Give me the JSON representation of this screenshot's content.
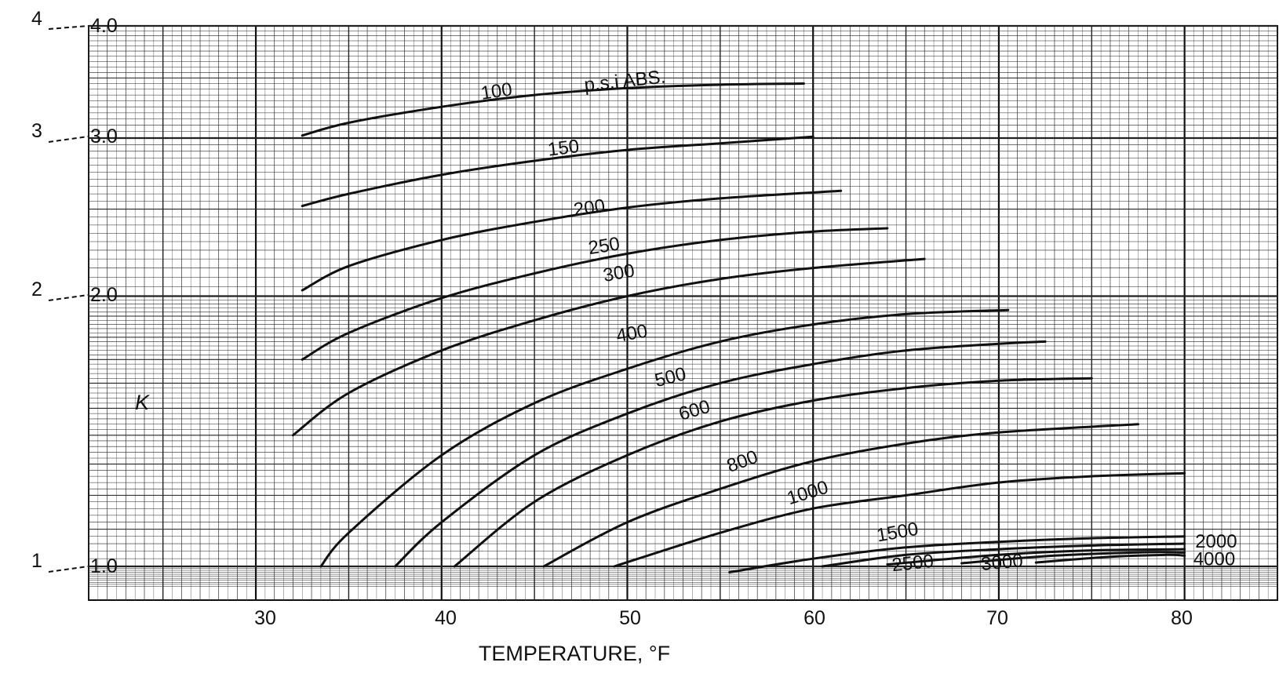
{
  "chart_data": {
    "type": "line",
    "title": "",
    "xlabel": "TEMPERATURE, °F",
    "ylabel": "K",
    "xlim": [
      21,
      85
    ],
    "ylim": [
      0.95,
      4.0
    ],
    "yscale": "log",
    "grid": true,
    "x_ticks": [
      "30",
      "40",
      "50",
      "60",
      "70",
      "80"
    ],
    "y_ticks": [
      "4.0",
      "3.0",
      "2.0",
      "1.0"
    ],
    "left_scale_ticks": [
      "4",
      "3",
      "2",
      "1"
    ],
    "curve_label_unit": "p.s.i ABS.",
    "series": [
      {
        "name": "100",
        "points": [
          [
            32.5,
            3.02
          ],
          [
            35,
            3.12
          ],
          [
            40,
            3.25
          ],
          [
            45,
            3.35
          ],
          [
            50,
            3.41
          ],
          [
            55,
            3.44
          ],
          [
            59.5,
            3.45
          ]
        ]
      },
      {
        "name": "150",
        "points": [
          [
            32.5,
            2.52
          ],
          [
            35,
            2.6
          ],
          [
            40,
            2.73
          ],
          [
            45,
            2.83
          ],
          [
            50,
            2.91
          ],
          [
            55,
            2.96
          ],
          [
            60,
            3.01
          ]
        ]
      },
      {
        "name": "200",
        "points": [
          [
            32.5,
            2.03
          ],
          [
            35,
            2.16
          ],
          [
            40,
            2.31
          ],
          [
            45,
            2.42
          ],
          [
            50,
            2.51
          ],
          [
            55,
            2.57
          ],
          [
            61.5,
            2.62
          ]
        ]
      },
      {
        "name": "250",
        "points": [
          [
            32.5,
            1.7
          ],
          [
            35,
            1.82
          ],
          [
            40,
            1.99
          ],
          [
            45,
            2.12
          ],
          [
            50,
            2.23
          ],
          [
            55,
            2.31
          ],
          [
            60,
            2.36
          ],
          [
            64,
            2.38
          ]
        ]
      },
      {
        "name": "300",
        "points": [
          [
            32,
            1.4
          ],
          [
            35,
            1.56
          ],
          [
            40,
            1.74
          ],
          [
            45,
            1.88
          ],
          [
            50,
            2.0
          ],
          [
            55,
            2.09
          ],
          [
            60,
            2.15
          ],
          [
            66,
            2.2
          ]
        ]
      },
      {
        "name": "400",
        "points": [
          [
            33.5,
            1.0
          ],
          [
            35,
            1.09
          ],
          [
            40,
            1.33
          ],
          [
            45,
            1.52
          ],
          [
            50,
            1.66
          ],
          [
            55,
            1.78
          ],
          [
            60,
            1.86
          ],
          [
            65,
            1.91
          ],
          [
            70.5,
            1.93
          ]
        ]
      },
      {
        "name": "500",
        "points": [
          [
            37.5,
            1.0
          ],
          [
            40,
            1.12
          ],
          [
            45,
            1.33
          ],
          [
            50,
            1.48
          ],
          [
            55,
            1.6
          ],
          [
            60,
            1.68
          ],
          [
            65,
            1.74
          ],
          [
            70,
            1.77
          ],
          [
            72.5,
            1.78
          ]
        ]
      },
      {
        "name": "600",
        "points": [
          [
            40.7,
            1.0
          ],
          [
            45,
            1.18
          ],
          [
            50,
            1.33
          ],
          [
            55,
            1.45
          ],
          [
            60,
            1.53
          ],
          [
            65,
            1.58
          ],
          [
            70,
            1.61
          ],
          [
            75,
            1.62
          ]
        ]
      },
      {
        "name": "800",
        "points": [
          [
            45.5,
            1.0
          ],
          [
            50,
            1.12
          ],
          [
            55,
            1.22
          ],
          [
            60,
            1.31
          ],
          [
            65,
            1.37
          ],
          [
            70,
            1.41
          ],
          [
            77.5,
            1.44
          ]
        ]
      },
      {
        "name": "1000",
        "points": [
          [
            49.3,
            1.0
          ],
          [
            55,
            1.09
          ],
          [
            60,
            1.16
          ],
          [
            65,
            1.2
          ],
          [
            70,
            1.24
          ],
          [
            75,
            1.26
          ],
          [
            80,
            1.27
          ]
        ]
      },
      {
        "name": "1500",
        "points": [
          [
            55.5,
            0.985
          ],
          [
            60,
            1.02
          ],
          [
            65,
            1.05
          ],
          [
            70,
            1.065
          ],
          [
            75,
            1.075
          ],
          [
            80,
            1.08
          ]
        ]
      },
      {
        "name": "2000",
        "points": [
          [
            60.5,
            1.0
          ],
          [
            65,
            1.03
          ],
          [
            70,
            1.045
          ],
          [
            75,
            1.055
          ],
          [
            80,
            1.06
          ]
        ]
      },
      {
        "name": "2500",
        "points": [
          [
            64,
            1.005
          ],
          [
            70,
            1.03
          ],
          [
            75,
            1.042
          ],
          [
            80,
            1.045
          ]
        ]
      },
      {
        "name": "3000",
        "points": [
          [
            68,
            1.008
          ],
          [
            73,
            1.028
          ],
          [
            78,
            1.037
          ],
          [
            80,
            1.036
          ]
        ]
      },
      {
        "name": "4000",
        "points": [
          [
            72,
            1.01
          ],
          [
            76,
            1.025
          ],
          [
            79,
            1.03
          ],
          [
            80,
            1.028
          ]
        ]
      }
    ]
  }
}
